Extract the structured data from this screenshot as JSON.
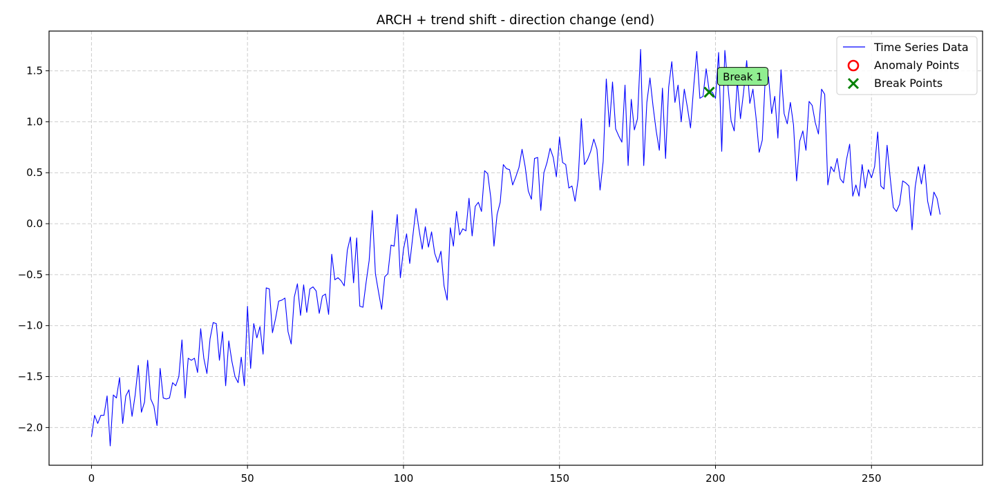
{
  "chart_data": {
    "type": "line",
    "title": "ARCH + trend shift - direction change (end)",
    "xlabel": "",
    "ylabel": "",
    "xlim": [
      -13.6,
      285.6
    ],
    "ylim": [
      -2.37,
      1.89
    ],
    "xticks": [
      0,
      50,
      100,
      150,
      200,
      250
    ],
    "xtick_labels": [
      "0",
      "50",
      "100",
      "150",
      "200",
      "250"
    ],
    "yticks": [
      -2.0,
      -1.5,
      -1.0,
      -0.5,
      0.0,
      0.5,
      1.0,
      1.5
    ],
    "ytick_labels": [
      "−2.0",
      "−1.5",
      "−1.0",
      "−0.5",
      "0.0",
      "0.5",
      "1.0",
      "1.5"
    ],
    "grid": true,
    "legend_position": "upper right",
    "legend": [
      "Time Series Data",
      "Anomaly Points",
      "Break Points"
    ],
    "series": [
      {
        "name": "Time Series Data",
        "color": "#0000ff",
        "x_start": 0,
        "x_step": 1,
        "values": [
          -2.09,
          -1.88,
          -1.96,
          -1.88,
          -1.88,
          -1.69,
          -2.18,
          -1.68,
          -1.71,
          -1.51,
          -1.96,
          -1.69,
          -1.63,
          -1.89,
          -1.68,
          -1.39,
          -1.85,
          -1.75,
          -1.34,
          -1.72,
          -1.79,
          -1.98,
          -1.42,
          -1.71,
          -1.72,
          -1.71,
          -1.56,
          -1.59,
          -1.5,
          -1.14,
          -1.71,
          -1.32,
          -1.34,
          -1.32,
          -1.46,
          -1.03,
          -1.32,
          -1.47,
          -1.13,
          -0.97,
          -0.98,
          -1.34,
          -1.06,
          -1.59,
          -1.15,
          -1.35,
          -1.5,
          -1.56,
          -1.31,
          -1.59,
          -0.81,
          -1.42,
          -0.98,
          -1.12,
          -1.01,
          -1.28,
          -0.63,
          -0.64,
          -1.07,
          -0.93,
          -0.76,
          -0.75,
          -0.73,
          -1.06,
          -1.18,
          -0.72,
          -0.59,
          -0.9,
          -0.6,
          -0.87,
          -0.64,
          -0.62,
          -0.66,
          -0.88,
          -0.71,
          -0.69,
          -0.89,
          -0.3,
          -0.55,
          -0.53,
          -0.56,
          -0.61,
          -0.26,
          -0.13,
          -0.58,
          -0.14,
          -0.81,
          -0.82,
          -0.58,
          -0.36,
          0.13,
          -0.49,
          -0.67,
          -0.84,
          -0.52,
          -0.49,
          -0.21,
          -0.22,
          0.09,
          -0.53,
          -0.25,
          -0.1,
          -0.39,
          -0.12,
          0.15,
          -0.06,
          -0.25,
          -0.03,
          -0.23,
          -0.08,
          -0.29,
          -0.38,
          -0.27,
          -0.61,
          -0.75,
          -0.04,
          -0.22,
          0.12,
          -0.11,
          -0.05,
          -0.07,
          0.25,
          -0.12,
          0.17,
          0.21,
          0.12,
          0.52,
          0.49,
          0.25,
          -0.22,
          0.09,
          0.21,
          0.58,
          0.54,
          0.53,
          0.38,
          0.46,
          0.55,
          0.73,
          0.56,
          0.32,
          0.24,
          0.64,
          0.65,
          0.13,
          0.5,
          0.6,
          0.74,
          0.65,
          0.46,
          0.85,
          0.6,
          0.58,
          0.35,
          0.37,
          0.22,
          0.44,
          1.03,
          0.58,
          0.63,
          0.71,
          0.83,
          0.73,
          0.33,
          0.61,
          1.42,
          0.95,
          1.39,
          0.93,
          0.86,
          0.8,
          1.36,
          0.57,
          1.22,
          0.92,
          1.03,
          1.71,
          0.57,
          1.19,
          1.43,
          1.15,
          0.91,
          0.72,
          1.33,
          0.64,
          1.34,
          1.59,
          1.19,
          1.36,
          1.0,
          1.32,
          1.14,
          0.94,
          1.34,
          1.69,
          1.23,
          1.25,
          1.52,
          1.3,
          1.29,
          1.23,
          1.68,
          0.71,
          1.7,
          1.35,
          1.01,
          0.91,
          1.4,
          1.03,
          1.29,
          1.6,
          1.18,
          1.32,
          1.04,
          0.7,
          0.82,
          1.46,
          1.44,
          1.08,
          1.25,
          0.84,
          1.51,
          1.08,
          0.98,
          1.19,
          0.97,
          0.42,
          0.81,
          0.91,
          0.72,
          1.2,
          1.16,
          0.99,
          0.88,
          1.32,
          1.27,
          0.38,
          0.56,
          0.51,
          0.64,
          0.44,
          0.4,
          0.63,
          0.78,
          0.27,
          0.38,
          0.27,
          0.58,
          0.35,
          0.53,
          0.45,
          0.56,
          0.9,
          0.37,
          0.34,
          0.77,
          0.45,
          0.16,
          0.12,
          0.19,
          0.42,
          0.4,
          0.37,
          -0.06,
          0.36,
          0.56,
          0.39,
          0.58,
          0.22,
          0.08,
          0.31,
          0.25,
          0.09
        ]
      }
    ],
    "anomaly_points": [],
    "break_points": [
      {
        "x": 198,
        "y": 1.29
      }
    ],
    "annotations": [
      {
        "text": "Break 1",
        "x": 198,
        "y": 1.29
      }
    ],
    "colors": {
      "line": "#0000ff",
      "anomaly": "#ff0000",
      "break": "#008000",
      "annotation_fill": "#90ee90",
      "grid": "#cccccc"
    }
  }
}
